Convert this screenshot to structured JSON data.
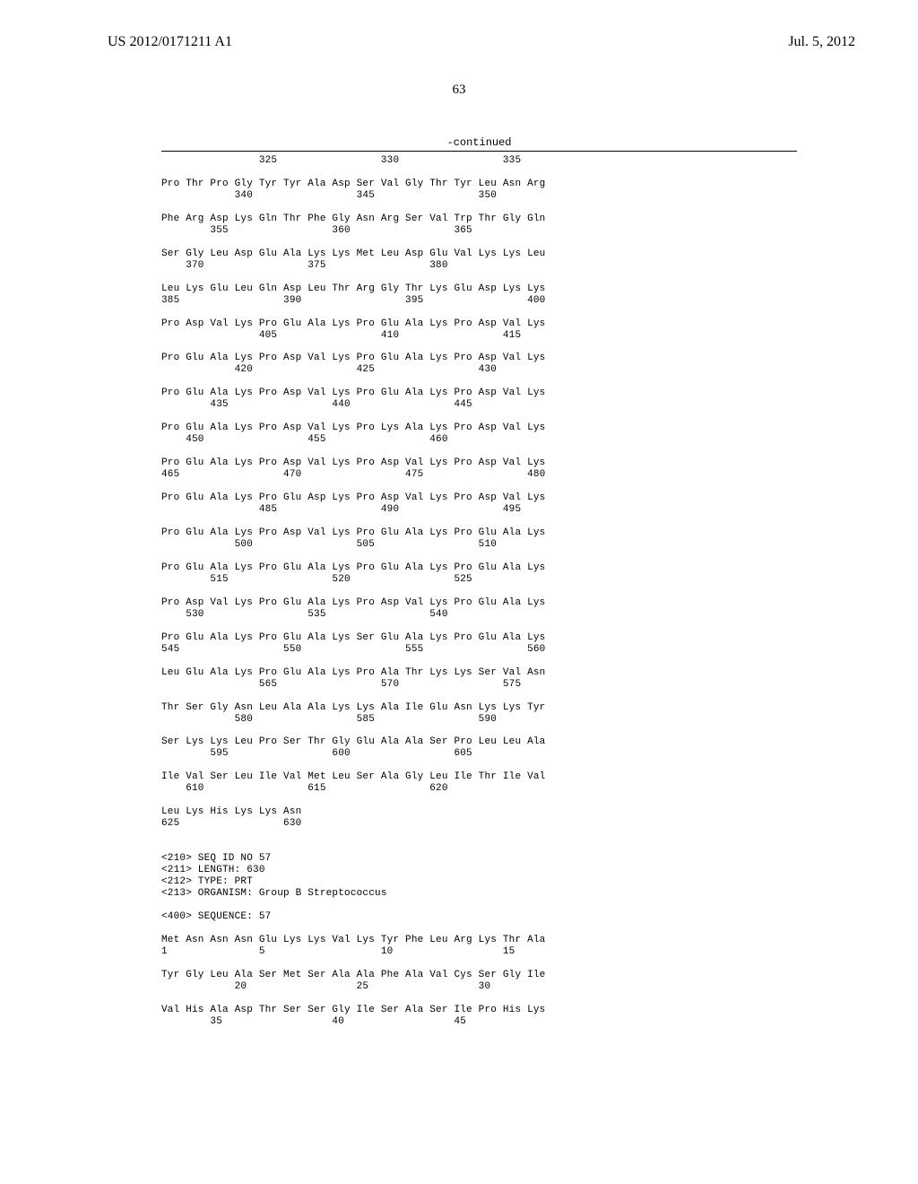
{
  "header": {
    "pub_number": "US 2012/0171211 A1",
    "pub_date": "Jul. 5, 2012"
  },
  "page_number": "63",
  "continued_label": "-continued",
  "sequence_text": "                325                 330                 335\n\nPro Thr Pro Gly Tyr Tyr Ala Asp Ser Val Gly Thr Tyr Leu Asn Arg\n            340                 345                 350\n\nPhe Arg Asp Lys Gln Thr Phe Gly Asn Arg Ser Val Trp Thr Gly Gln\n        355                 360                 365\n\nSer Gly Leu Asp Glu Ala Lys Lys Met Leu Asp Glu Val Lys Lys Leu\n    370                 375                 380\n\nLeu Lys Glu Leu Gln Asp Leu Thr Arg Gly Thr Lys Glu Asp Lys Lys\n385                 390                 395                 400\n\nPro Asp Val Lys Pro Glu Ala Lys Pro Glu Ala Lys Pro Asp Val Lys\n                405                 410                 415\n\nPro Glu Ala Lys Pro Asp Val Lys Pro Glu Ala Lys Pro Asp Val Lys\n            420                 425                 430\n\nPro Glu Ala Lys Pro Asp Val Lys Pro Glu Ala Lys Pro Asp Val Lys\n        435                 440                 445\n\nPro Glu Ala Lys Pro Asp Val Lys Pro Lys Ala Lys Pro Asp Val Lys\n    450                 455                 460\n\nPro Glu Ala Lys Pro Asp Val Lys Pro Asp Val Lys Pro Asp Val Lys\n465                 470                 475                 480\n\nPro Glu Ala Lys Pro Glu Asp Lys Pro Asp Val Lys Pro Asp Val Lys\n                485                 490                 495\n\nPro Glu Ala Lys Pro Asp Val Lys Pro Glu Ala Lys Pro Glu Ala Lys\n            500                 505                 510\n\nPro Glu Ala Lys Pro Glu Ala Lys Pro Glu Ala Lys Pro Glu Ala Lys\n        515                 520                 525\n\nPro Asp Val Lys Pro Glu Ala Lys Pro Asp Val Lys Pro Glu Ala Lys\n    530                 535                 540\n\nPro Glu Ala Lys Pro Glu Ala Lys Ser Glu Ala Lys Pro Glu Ala Lys\n545                 550                 555                 560\n\nLeu Glu Ala Lys Pro Glu Ala Lys Pro Ala Thr Lys Lys Ser Val Asn\n                565                 570                 575\n\nThr Ser Gly Asn Leu Ala Ala Lys Lys Ala Ile Glu Asn Lys Lys Tyr\n            580                 585                 590\n\nSer Lys Lys Leu Pro Ser Thr Gly Glu Ala Ala Ser Pro Leu Leu Ala\n        595                 600                 605\n\nIle Val Ser Leu Ile Val Met Leu Ser Ala Gly Leu Ile Thr Ile Val\n    610                 615                 620\n\nLeu Lys His Lys Lys Asn\n625                 630\n\n\n<210> SEQ ID NO 57\n<211> LENGTH: 630\n<212> TYPE: PRT\n<213> ORGANISM: Group B Streptococcus\n\n<400> SEQUENCE: 57\n\nMet Asn Asn Asn Glu Lys Lys Val Lys Tyr Phe Leu Arg Lys Thr Ala\n1               5                   10                  15\n\nTyr Gly Leu Ala Ser Met Ser Ala Ala Phe Ala Val Cys Ser Gly Ile\n            20                  25                  30\n\nVal His Ala Asp Thr Ser Ser Gly Ile Ser Ala Ser Ile Pro His Lys\n        35                  40                  45"
}
